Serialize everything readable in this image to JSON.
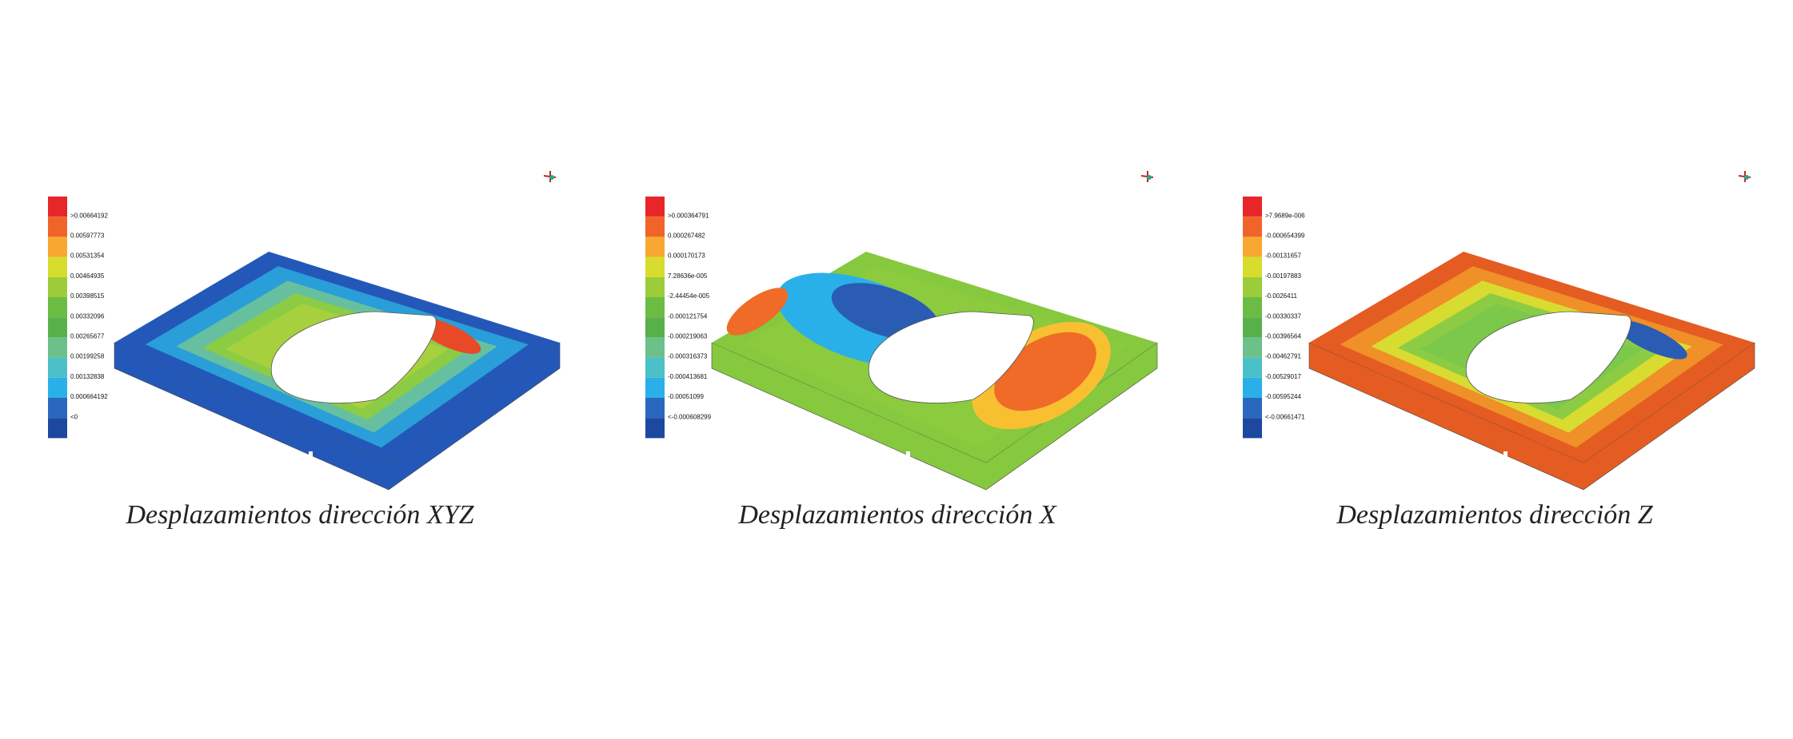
{
  "panels": [
    {
      "caption": "Desplazamientos dirección XYZ",
      "legend": [
        ">0.00664192",
        "0.00597773",
        "0.00531354",
        "0.00464935",
        "0.00398515",
        "0.00332096",
        "0.00265677",
        "0.00199258",
        "0.00132838",
        "0.000664192",
        "<0"
      ]
    },
    {
      "caption": "Desplazamientos dirección X",
      "legend": [
        ">0.000364791",
        "0.000267482",
        "0.000170173",
        "7.28636e-005",
        "-2.44454e-005",
        "-0.000121754",
        "-0.000219063",
        "-0.000316373",
        "-0.000413681",
        "-0.00051099",
        "<-0.000608299"
      ]
    },
    {
      "caption": "Desplazamientos dirección Z",
      "legend": [
        ">7.9689e-006",
        "-0.000654399",
        "-0.00131657",
        "-0.00197883",
        "-0.0026411",
        "-0.00330337",
        "-0.00396564",
        "-0.00462791",
        "-0.00529017",
        "-0.00595244",
        "<-0.00661471"
      ]
    }
  ]
}
